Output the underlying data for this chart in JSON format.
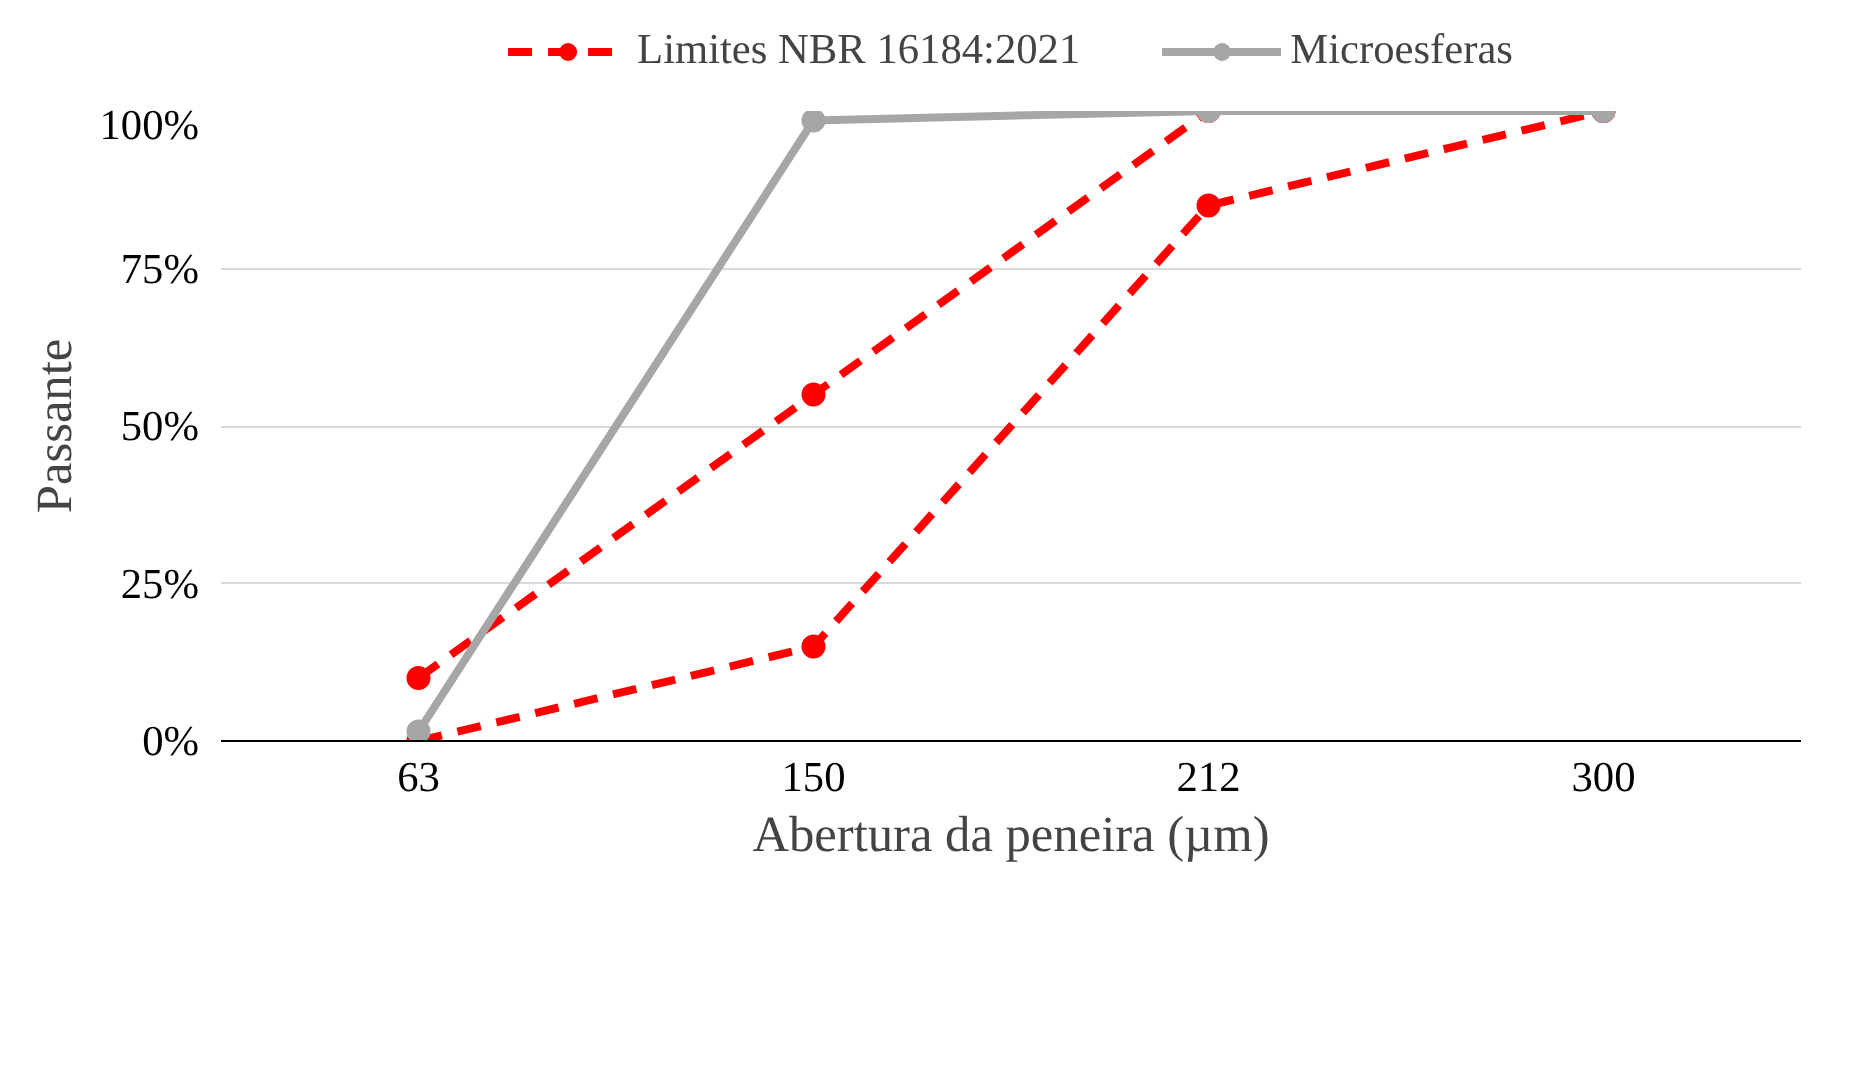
{
  "chart_data": {
    "type": "line",
    "xlabel": "Abertura da peneira (µm)",
    "ylabel": "Passante",
    "categories": [
      "63",
      "150",
      "212",
      "300"
    ],
    "series": [
      {
        "name": "Limites NBR 16184:2021",
        "color": "#ff0000",
        "values": [
          10,
          55,
          100,
          100
        ],
        "line_style": "dashed"
      },
      {
        "color": "#ff0000",
        "values": [
          0,
          15,
          85,
          100
        ],
        "line_style": "dashed"
      },
      {
        "name": "Microesferas",
        "color": "#a6a6a6",
        "values": [
          1.5,
          98.5,
          100,
          100
        ],
        "line_style": "solid"
      }
    ],
    "ylim": [
      0,
      100
    ],
    "yticks": [
      {
        "value": 0,
        "label": "0%"
      },
      {
        "value": 25,
        "label": "25%"
      },
      {
        "value": 50,
        "label": "50%"
      },
      {
        "value": 75,
        "label": "75%"
      },
      {
        "value": 100,
        "label": "100%"
      }
    ],
    "grid": "y",
    "legend": "top",
    "marker": "circle"
  }
}
